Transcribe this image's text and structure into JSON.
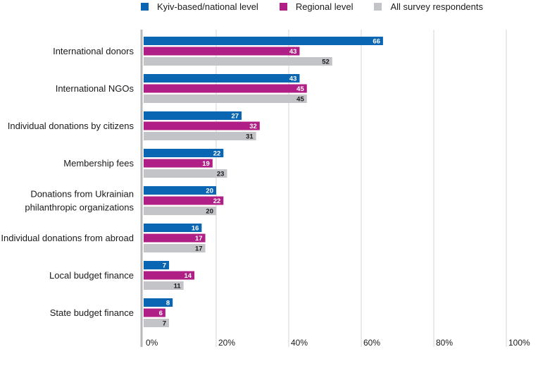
{
  "chart_data": {
    "type": "bar",
    "orientation": "horizontal",
    "categories": [
      "International donors",
      "International NGOs",
      "Individual donations by citizens",
      "Membership fees",
      "Donations from Ukrainian philanthropic organizations",
      "Individual donations from abroad",
      "Local budget finance",
      "State budget finance"
    ],
    "category_lines": [
      [
        "International donors"
      ],
      [
        "International NGOs"
      ],
      [
        "Individual donations by citizens"
      ],
      [
        "Membership fees"
      ],
      [
        "Donations from Ukrainian",
        "philanthropic organizations"
      ],
      [
        "Individual donations from abroad"
      ],
      [
        "Local budget finance"
      ],
      [
        "State budget finance"
      ]
    ],
    "series": [
      {
        "name": "Kyiv-based/national level",
        "color": "#0a66b2",
        "label_color": "#ffffff",
        "values": [
          66,
          43,
          27,
          22,
          20,
          16,
          7,
          8
        ]
      },
      {
        "name": "Regional level",
        "color": "#b01f85",
        "label_color": "#ffffff",
        "values": [
          43,
          45,
          32,
          19,
          22,
          17,
          14,
          6
        ]
      },
      {
        "name": "All survey respondents",
        "color": "#c3c4c8",
        "label_color": "#1a1a1a",
        "values": [
          52,
          45,
          31,
          23,
          20,
          17,
          11,
          7
        ]
      }
    ],
    "xlim": [
      0,
      100
    ],
    "xticks": [
      "0%",
      "20%",
      "40%",
      "60%",
      "80%",
      "100%"
    ],
    "grid": true,
    "legend_position": "top"
  }
}
